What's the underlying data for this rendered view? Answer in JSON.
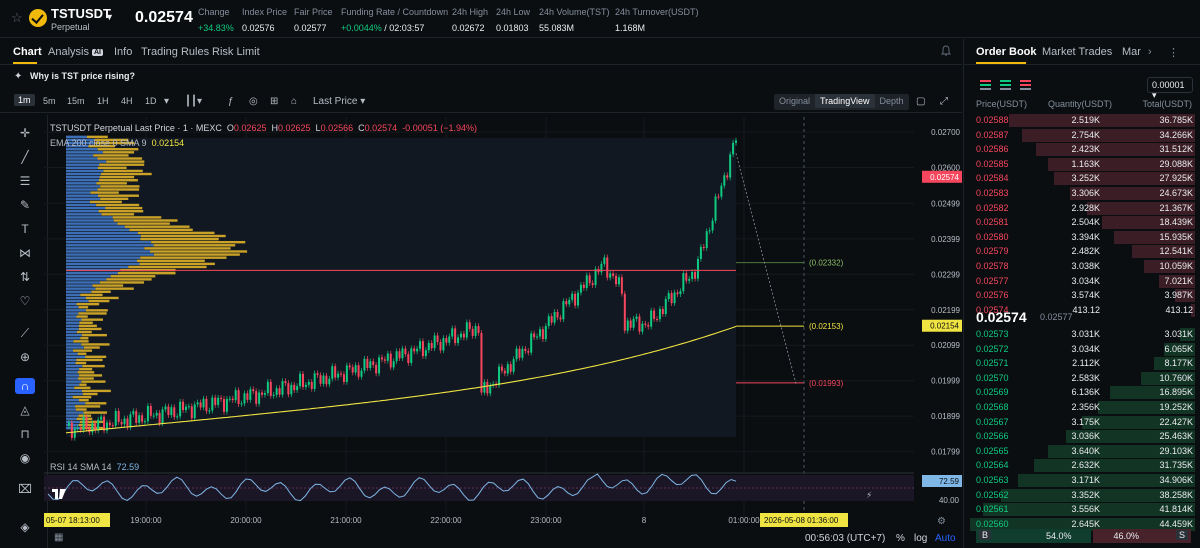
{
  "ticker": {
    "symbol": "TSTUSDT",
    "type": "Perpetual",
    "last_price": "0.02574",
    "stats": [
      {
        "label": "Change",
        "value": "+34.83%",
        "color": "green",
        "x": 198
      },
      {
        "label": "Index Price",
        "value": "0.02576",
        "color": "",
        "x": 242
      },
      {
        "label": "Fair Price",
        "value": "0.02577",
        "color": "",
        "x": 294
      },
      {
        "label": "Funding Rate / Countdown",
        "value": "+0.0044%",
        "value2": " / 02:03:57",
        "color": "green",
        "x": 341
      },
      {
        "label": "24h High",
        "value": "0.02672",
        "color": "",
        "x": 452
      },
      {
        "label": "24h Low",
        "value": "0.01803",
        "color": "",
        "x": 496
      },
      {
        "label": "24h Volume(TST)",
        "value": "55.083M",
        "color": "",
        "x": 539
      },
      {
        "label": "24h Turnover(USDT)",
        "value": "1.168M",
        "color": "",
        "x": 615
      }
    ]
  },
  "chart_tabs": {
    "chart": "Chart",
    "analysis": "Analysis",
    "analysis_badge": "AI",
    "info": "Info",
    "rules": "Trading Rules",
    "risk": "Risk Limit"
  },
  "why_banner": "Why is TST price rising?",
  "toolbar": {
    "timeframes": [
      "1m",
      "5m",
      "15m",
      "1H",
      "4H",
      "1D"
    ],
    "selected": "1m",
    "price_type": "Last Price",
    "views": [
      "Original",
      "TradingView",
      "Depth"
    ],
    "selected_view": "TradingView"
  },
  "legend": {
    "title": "TSTUSDT Perpetual Last Price · 1 · MEXC",
    "o_label": "O",
    "o": "0.02625",
    "h_label": "H",
    "h": "0.02625",
    "l_label": "L",
    "l": "0.02566",
    "c_label": "C",
    "c": "0.02574",
    "chg": "-0.00051 (−1.94%)",
    "ema_label": "EMA 200 close 0 SMA 9",
    "ema_value": "0.02154",
    "rsi_label": "RSI 14 SMA 14",
    "rsi_value": "72.59"
  },
  "chart_data": {
    "type": "candlestick",
    "y_ticks": [
      "0.02700",
      "0.02600",
      "0.02499",
      "0.02399",
      "0.02299",
      "0.02199",
      "0.02099",
      "0.01999",
      "0.01899",
      "0.01799"
    ],
    "x_ticks": [
      "19:00:00",
      "20:00:00",
      "21:00:00",
      "22:00:00",
      "23:00:00",
      "8",
      "01:00:00"
    ],
    "ylim": [
      0.0175,
      0.0272
    ],
    "last_price_tag": "0.02574",
    "ema_tag": "0.02154",
    "rsi_tag": "72.59",
    "rsi_level": "40.00",
    "annotations": [
      "(0.02332)",
      "(0.02153)",
      "(0.01993)"
    ],
    "crosshair_left_time": "05-07  18:13:00",
    "crosshair_right_time": "2026-05-08  01:36:00",
    "volume_profile": "",
    "colors": {
      "up": "#0ecb81",
      "down": "#f6465d",
      "ema": "#f0e442",
      "rsi": "#7fb7e6"
    }
  },
  "status": {
    "time": "00:56:03 (UTC+7)",
    "pct": "%",
    "log": "log",
    "auto": "Auto"
  },
  "orderbook": {
    "tabs": [
      "Order Book",
      "Market Trades",
      "Mar"
    ],
    "precision": "0.00001",
    "headers": [
      "Price(USDT)",
      "Quantity(USDT)",
      "Total(USDT)"
    ],
    "asks": [
      [
        "0.02588",
        "2.519K",
        "36.785K"
      ],
      [
        "0.02587",
        "2.754K",
        "34.266K"
      ],
      [
        "0.02586",
        "2.423K",
        "31.512K"
      ],
      [
        "0.02585",
        "1.163K",
        "29.088K"
      ],
      [
        "0.02584",
        "3.252K",
        "27.925K"
      ],
      [
        "0.02583",
        "3.306K",
        "24.673K"
      ],
      [
        "0.02582",
        "2.928K",
        "21.367K"
      ],
      [
        "0.02581",
        "2.504K",
        "18.439K"
      ],
      [
        "0.02580",
        "3.394K",
        "15.935K"
      ],
      [
        "0.02579",
        "2.482K",
        "12.541K"
      ],
      [
        "0.02578",
        "3.038K",
        "10.059K"
      ],
      [
        "0.02577",
        "3.034K",
        "7.021K"
      ],
      [
        "0.02576",
        "3.574K",
        "3.987K"
      ],
      [
        "0.02574",
        "413.12",
        "413.12"
      ]
    ],
    "mid": "0.02574",
    "mid_mark": "0.02577",
    "bids": [
      [
        "0.02573",
        "3.031K",
        "3.031K"
      ],
      [
        "0.02572",
        "3.034K",
        "6.065K"
      ],
      [
        "0.02571",
        "2.112K",
        "8.177K"
      ],
      [
        "0.02570",
        "2.583K",
        "10.760K"
      ],
      [
        "0.02569",
        "6.136K",
        "16.895K"
      ],
      [
        "0.02568",
        "2.356K",
        "19.252K"
      ],
      [
        "0.02567",
        "3.175K",
        "22.427K"
      ],
      [
        "0.02566",
        "3.036K",
        "25.463K"
      ],
      [
        "0.02565",
        "3.640K",
        "29.103K"
      ],
      [
        "0.02564",
        "2.632K",
        "31.735K"
      ],
      [
        "0.02563",
        "3.171K",
        "34.906K"
      ],
      [
        "0.02562",
        "3.352K",
        "38.258K"
      ],
      [
        "0.02561",
        "3.556K",
        "41.814K"
      ],
      [
        "0.02560",
        "2.645K",
        "44.459K"
      ]
    ],
    "buy_label": "B",
    "buy_pct": "54.0%",
    "sell_pct": "46.0%",
    "sell_label": "S",
    "buy_ratio": 0.54
  }
}
